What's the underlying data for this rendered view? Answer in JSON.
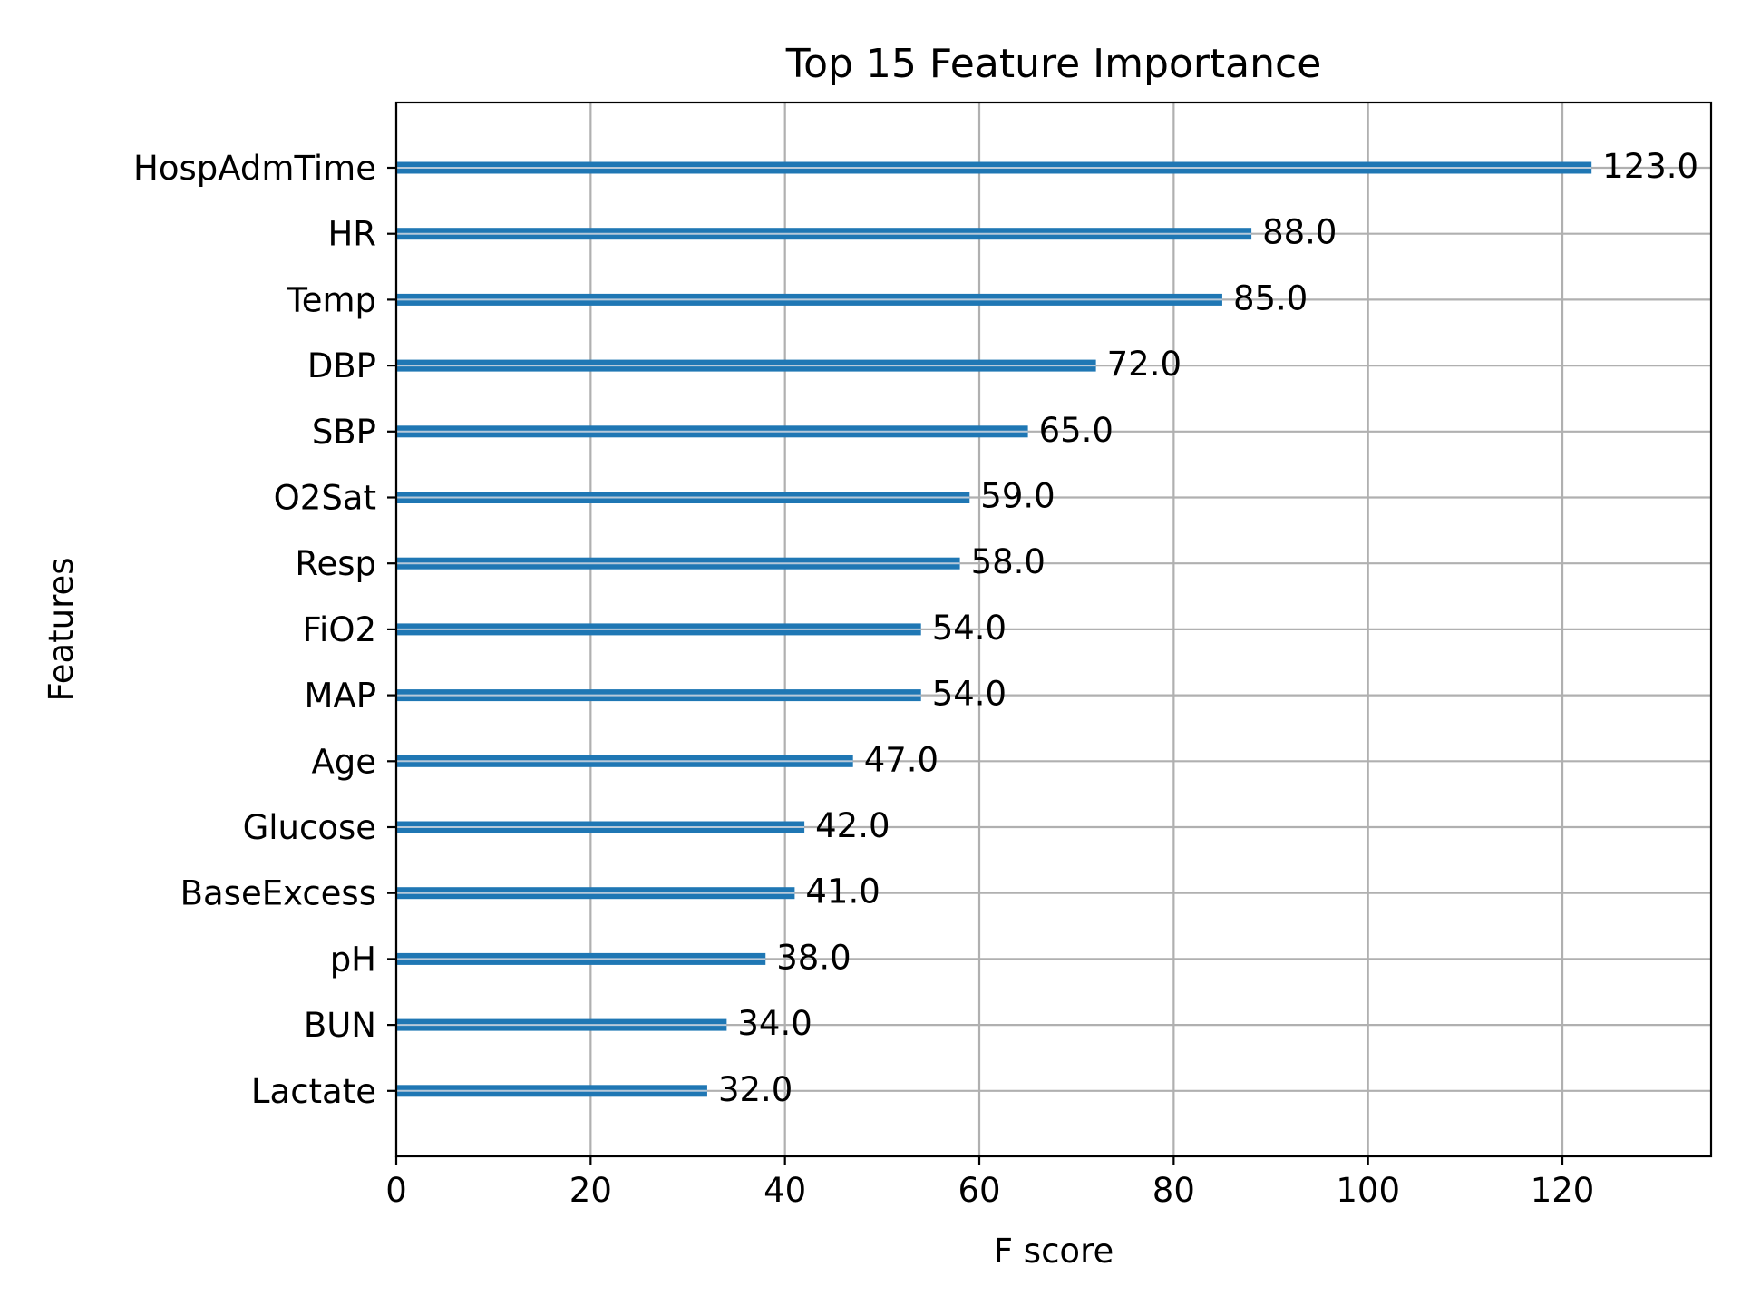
{
  "chart_data": {
    "type": "bar",
    "orientation": "horizontal",
    "title": "Top 15 Feature Importance",
    "xlabel": "F score",
    "ylabel": "Features",
    "categories": [
      "HospAdmTime",
      "HR",
      "Temp",
      "DBP",
      "SBP",
      "O2Sat",
      "Resp",
      "FiO2",
      "MAP",
      "Age",
      "Glucose",
      "BaseExcess",
      "pH",
      "BUN",
      "Lactate"
    ],
    "values": [
      123,
      88,
      85,
      72,
      65,
      59,
      58,
      54,
      54,
      47,
      42,
      41,
      38,
      34,
      32
    ],
    "value_labels": [
      "123.0",
      "88.0",
      "85.0",
      "72.0",
      "65.0",
      "59.0",
      "58.0",
      "54.0",
      "54.0",
      "47.0",
      "42.0",
      "41.0",
      "38.0",
      "34.0",
      "32.0"
    ],
    "xlim": [
      0,
      135.3
    ],
    "xticks": [
      0,
      20,
      40,
      60,
      80,
      100,
      120
    ],
    "xtick_labels": [
      "0",
      "20",
      "40",
      "60",
      "80",
      "100",
      "120"
    ],
    "grid": true,
    "legend": "none",
    "bar_color": "#1f77b4"
  }
}
